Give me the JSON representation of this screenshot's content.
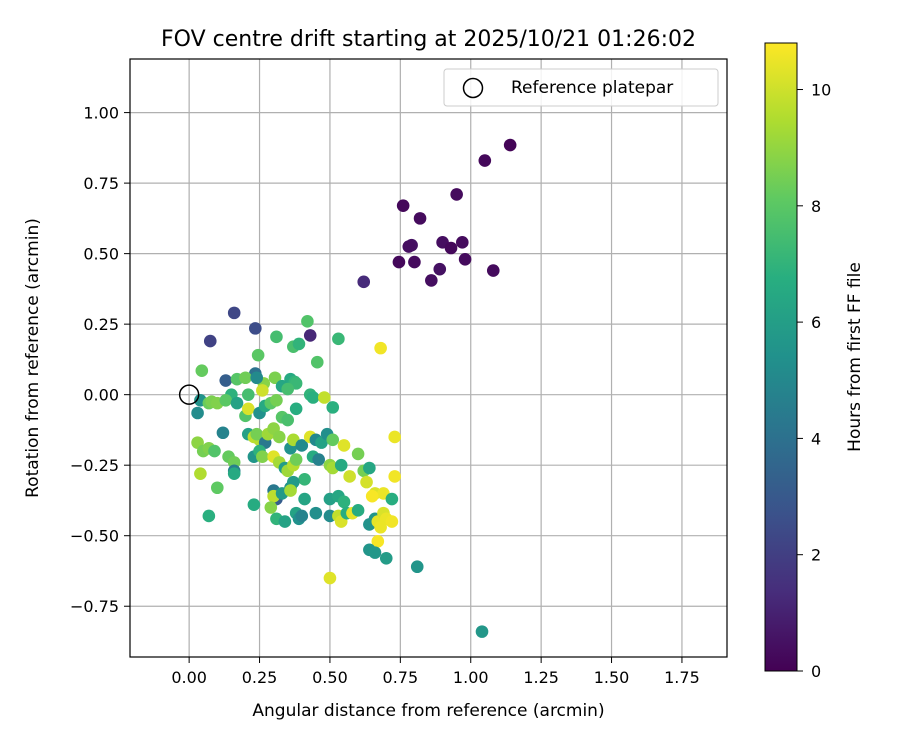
{
  "chart_data": {
    "type": "scatter",
    "title": "FOV centre drift starting at 2025/10/21 01:26:02",
    "xlabel": "Angular distance from reference (arcmin)",
    "ylabel": "Rotation from reference (arcmin)",
    "xlim": [
      -0.21,
      1.91
    ],
    "ylim": [
      -0.93,
      1.19
    ],
    "xticks": [
      0.0,
      0.25,
      0.5,
      0.75,
      1.0,
      1.25,
      1.5,
      1.75
    ],
    "xtick_labels": [
      "0.00",
      "0.25",
      "0.50",
      "0.75",
      "1.00",
      "1.25",
      "1.50",
      "1.75"
    ],
    "yticks": [
      -0.75,
      -0.5,
      -0.25,
      0.0,
      0.25,
      0.5,
      0.75,
      1.0
    ],
    "ytick_labels": [
      "−0.75",
      "−0.50",
      "−0.25",
      "0.00",
      "0.25",
      "0.50",
      "0.75",
      "1.00"
    ],
    "grid": true,
    "legend": {
      "position": "top-right",
      "entries": [
        "Reference platepar"
      ]
    },
    "reference_point": {
      "x": 0.0,
      "y": 0.0,
      "label": "Reference platepar"
    },
    "colorbar": {
      "label": "Hours from first FF file",
      "min": 0,
      "max": 10.8,
      "ticks": [
        0,
        2,
        4,
        6,
        8,
        10
      ],
      "tick_labels": [
        "0",
        "2",
        "4",
        "6",
        "8",
        "10"
      ],
      "colormap": "viridis"
    },
    "points": [
      {
        "x": 1.14,
        "y": 0.885,
        "h": 0.1
      },
      {
        "x": 1.05,
        "y": 0.83,
        "h": 0.2
      },
      {
        "x": 0.95,
        "y": 0.71,
        "h": 0.3
      },
      {
        "x": 0.76,
        "y": 0.67,
        "h": 0.2
      },
      {
        "x": 0.82,
        "y": 0.625,
        "h": 0.3
      },
      {
        "x": 0.97,
        "y": 0.54,
        "h": 0.3
      },
      {
        "x": 0.9,
        "y": 0.54,
        "h": 0.4
      },
      {
        "x": 0.79,
        "y": 0.53,
        "h": 0.5
      },
      {
        "x": 0.78,
        "y": 0.525,
        "h": 0.4
      },
      {
        "x": 0.93,
        "y": 0.52,
        "h": 0.2
      },
      {
        "x": 0.98,
        "y": 0.48,
        "h": 0.3
      },
      {
        "x": 0.745,
        "y": 0.47,
        "h": 0.2
      },
      {
        "x": 0.8,
        "y": 0.47,
        "h": 0.3
      },
      {
        "x": 0.89,
        "y": 0.445,
        "h": 0.5
      },
      {
        "x": 1.08,
        "y": 0.44,
        "h": 0.3
      },
      {
        "x": 0.86,
        "y": 0.405,
        "h": 0.4
      },
      {
        "x": 0.62,
        "y": 0.4,
        "h": 1.3
      },
      {
        "x": 0.16,
        "y": 0.29,
        "h": 2.3
      },
      {
        "x": 0.235,
        "y": 0.235,
        "h": 2.5
      },
      {
        "x": 0.43,
        "y": 0.21,
        "h": 1.2
      },
      {
        "x": 0.075,
        "y": 0.19,
        "h": 2.1
      },
      {
        "x": 0.42,
        "y": 0.26,
        "h": 7.8
      },
      {
        "x": 0.31,
        "y": 0.205,
        "h": 7.5
      },
      {
        "x": 0.53,
        "y": 0.198,
        "h": 7.2
      },
      {
        "x": 0.37,
        "y": 0.17,
        "h": 7.6
      },
      {
        "x": 0.39,
        "y": 0.18,
        "h": 7.0
      },
      {
        "x": 0.245,
        "y": 0.14,
        "h": 8.0
      },
      {
        "x": 0.68,
        "y": 0.165,
        "h": 10.6
      },
      {
        "x": 0.455,
        "y": 0.115,
        "h": 7.8
      },
      {
        "x": 0.045,
        "y": 0.085,
        "h": 8.2
      },
      {
        "x": 0.235,
        "y": 0.075,
        "h": 4.0
      },
      {
        "x": 0.13,
        "y": 0.05,
        "h": 3.2
      },
      {
        "x": 0.17,
        "y": 0.055,
        "h": 7.9
      },
      {
        "x": 0.2,
        "y": 0.06,
        "h": 8.4
      },
      {
        "x": 0.36,
        "y": 0.055,
        "h": 6.5
      },
      {
        "x": 0.375,
        "y": 0.045,
        "h": 7.0
      },
      {
        "x": 0.38,
        "y": 0.04,
        "h": 7.2
      },
      {
        "x": 0.305,
        "y": 0.06,
        "h": 8.6
      },
      {
        "x": 0.265,
        "y": 0.04,
        "h": 8.8
      },
      {
        "x": 0.24,
        "y": 0.06,
        "h": 5.1
      },
      {
        "x": 0.33,
        "y": 0.03,
        "h": 6.4
      },
      {
        "x": 0.35,
        "y": 0.02,
        "h": 7.5
      },
      {
        "x": 0.26,
        "y": 0.015,
        "h": 10.0
      },
      {
        "x": 0.15,
        "y": 0.0,
        "h": 6.9
      },
      {
        "x": 0.21,
        "y": 0.0,
        "h": 7.5
      },
      {
        "x": 0.43,
        "y": 0.0,
        "h": 7.0
      },
      {
        "x": 0.44,
        "y": -0.01,
        "h": 6.8
      },
      {
        "x": 0.48,
        "y": -0.01,
        "h": 9.8
      },
      {
        "x": 0.03,
        "y": -0.065,
        "h": 5.2
      },
      {
        "x": 0.04,
        "y": -0.02,
        "h": 5.5
      },
      {
        "x": 0.07,
        "y": -0.03,
        "h": 8.3
      },
      {
        "x": 0.08,
        "y": -0.025,
        "h": 8.6
      },
      {
        "x": 0.1,
        "y": -0.03,
        "h": 8.7
      },
      {
        "x": 0.13,
        "y": -0.02,
        "h": 8.0
      },
      {
        "x": 0.17,
        "y": -0.03,
        "h": 6.2
      },
      {
        "x": 0.2,
        "y": -0.075,
        "h": 7.8
      },
      {
        "x": 0.21,
        "y": -0.05,
        "h": 10.2
      },
      {
        "x": 0.25,
        "y": -0.065,
        "h": 5.4
      },
      {
        "x": 0.27,
        "y": -0.04,
        "h": 6.5
      },
      {
        "x": 0.29,
        "y": -0.03,
        "h": 8.0
      },
      {
        "x": 0.31,
        "y": -0.02,
        "h": 8.5
      },
      {
        "x": 0.33,
        "y": -0.08,
        "h": 7.9
      },
      {
        "x": 0.35,
        "y": -0.09,
        "h": 7.6
      },
      {
        "x": 0.38,
        "y": -0.05,
        "h": 6.7
      },
      {
        "x": 0.51,
        "y": -0.045,
        "h": 6.8
      },
      {
        "x": 0.12,
        "y": -0.135,
        "h": 4.8
      },
      {
        "x": 0.21,
        "y": -0.14,
        "h": 6.1
      },
      {
        "x": 0.23,
        "y": -0.15,
        "h": 9.7
      },
      {
        "x": 0.25,
        "y": -0.16,
        "h": 9.6
      },
      {
        "x": 0.24,
        "y": -0.14,
        "h": 8.5
      },
      {
        "x": 0.27,
        "y": -0.17,
        "h": 4.3
      },
      {
        "x": 0.28,
        "y": -0.14,
        "h": 9.2
      },
      {
        "x": 0.3,
        "y": -0.12,
        "h": 8.9
      },
      {
        "x": 0.32,
        "y": -0.15,
        "h": 8.8
      },
      {
        "x": 0.36,
        "y": -0.19,
        "h": 5.5
      },
      {
        "x": 0.37,
        "y": -0.16,
        "h": 9.4
      },
      {
        "x": 0.4,
        "y": -0.18,
        "h": 5.1
      },
      {
        "x": 0.43,
        "y": -0.15,
        "h": 10.3
      },
      {
        "x": 0.45,
        "y": -0.16,
        "h": 5.0
      },
      {
        "x": 0.47,
        "y": -0.17,
        "h": 6.2
      },
      {
        "x": 0.49,
        "y": -0.14,
        "h": 5.3
      },
      {
        "x": 0.51,
        "y": -0.16,
        "h": 8.2
      },
      {
        "x": 0.55,
        "y": -0.18,
        "h": 10.3
      },
      {
        "x": 0.6,
        "y": -0.21,
        "h": 8.5
      },
      {
        "x": 0.73,
        "y": -0.15,
        "h": 10.5
      },
      {
        "x": 0.03,
        "y": -0.17,
        "h": 8.9
      },
      {
        "x": 0.05,
        "y": -0.2,
        "h": 8.5
      },
      {
        "x": 0.07,
        "y": -0.19,
        "h": 8.7
      },
      {
        "x": 0.09,
        "y": -0.2,
        "h": 7.8
      },
      {
        "x": 0.14,
        "y": -0.22,
        "h": 8.2
      },
      {
        "x": 0.16,
        "y": -0.24,
        "h": 8.4
      },
      {
        "x": 0.16,
        "y": -0.27,
        "h": 4.6
      },
      {
        "x": 0.16,
        "y": -0.28,
        "h": 6.5
      },
      {
        "x": 0.23,
        "y": -0.22,
        "h": 5.6
      },
      {
        "x": 0.25,
        "y": -0.2,
        "h": 6.9
      },
      {
        "x": 0.26,
        "y": -0.22,
        "h": 8.7
      },
      {
        "x": 0.3,
        "y": -0.22,
        "h": 10.3
      },
      {
        "x": 0.32,
        "y": -0.24,
        "h": 9.3
      },
      {
        "x": 0.34,
        "y": -0.26,
        "h": 5.9
      },
      {
        "x": 0.35,
        "y": -0.27,
        "h": 9.2
      },
      {
        "x": 0.37,
        "y": -0.25,
        "h": 9.6
      },
      {
        "x": 0.38,
        "y": -0.23,
        "h": 8.4
      },
      {
        "x": 0.41,
        "y": -0.3,
        "h": 7.1
      },
      {
        "x": 0.44,
        "y": -0.22,
        "h": 6.6
      },
      {
        "x": 0.46,
        "y": -0.23,
        "h": 4.7
      },
      {
        "x": 0.5,
        "y": -0.25,
        "h": 8.9
      },
      {
        "x": 0.51,
        "y": -0.26,
        "h": 9.3
      },
      {
        "x": 0.54,
        "y": -0.25,
        "h": 6.5
      },
      {
        "x": 0.57,
        "y": -0.29,
        "h": 10.0
      },
      {
        "x": 0.62,
        "y": -0.27,
        "h": 8.5
      },
      {
        "x": 0.64,
        "y": -0.26,
        "h": 6.4
      },
      {
        "x": 0.63,
        "y": -0.31,
        "h": 10.1
      },
      {
        "x": 0.66,
        "y": -0.35,
        "h": 10.2
      },
      {
        "x": 0.69,
        "y": -0.35,
        "h": 10.5
      },
      {
        "x": 0.73,
        "y": -0.29,
        "h": 10.6
      },
      {
        "x": 0.04,
        "y": -0.28,
        "h": 9.5
      },
      {
        "x": 0.1,
        "y": -0.33,
        "h": 8.1
      },
      {
        "x": 0.3,
        "y": -0.34,
        "h": 4.3
      },
      {
        "x": 0.31,
        "y": -0.37,
        "h": 3.2
      },
      {
        "x": 0.3,
        "y": -0.36,
        "h": 9.7
      },
      {
        "x": 0.33,
        "y": -0.35,
        "h": 5.8
      },
      {
        "x": 0.36,
        "y": -0.33,
        "h": 5.4
      },
      {
        "x": 0.37,
        "y": -0.31,
        "h": 5.8
      },
      {
        "x": 0.36,
        "y": -0.34,
        "h": 9.3
      },
      {
        "x": 0.41,
        "y": -0.37,
        "h": 6.3
      },
      {
        "x": 0.5,
        "y": -0.37,
        "h": 6.1
      },
      {
        "x": 0.53,
        "y": -0.36,
        "h": 6.4
      },
      {
        "x": 0.55,
        "y": -0.38,
        "h": 6.9
      },
      {
        "x": 0.65,
        "y": -0.36,
        "h": 10.7
      },
      {
        "x": 0.72,
        "y": -0.37,
        "h": 6.7
      },
      {
        "x": 0.07,
        "y": -0.43,
        "h": 6.8
      },
      {
        "x": 0.23,
        "y": -0.39,
        "h": 6.6
      },
      {
        "x": 0.29,
        "y": -0.4,
        "h": 8.8
      },
      {
        "x": 0.31,
        "y": -0.44,
        "h": 7.0
      },
      {
        "x": 0.34,
        "y": -0.45,
        "h": 6.2
      },
      {
        "x": 0.38,
        "y": -0.42,
        "h": 6.2
      },
      {
        "x": 0.39,
        "y": -0.44,
        "h": 5.4
      },
      {
        "x": 0.4,
        "y": -0.43,
        "h": 4.8
      },
      {
        "x": 0.45,
        "y": -0.42,
        "h": 5.3
      },
      {
        "x": 0.5,
        "y": -0.43,
        "h": 5.2
      },
      {
        "x": 0.53,
        "y": -0.43,
        "h": 9.8
      },
      {
        "x": 0.54,
        "y": -0.45,
        "h": 10.2
      },
      {
        "x": 0.56,
        "y": -0.42,
        "h": 6.7
      },
      {
        "x": 0.58,
        "y": -0.42,
        "h": 10.4
      },
      {
        "x": 0.6,
        "y": -0.41,
        "h": 6.6
      },
      {
        "x": 0.64,
        "y": -0.46,
        "h": 5.5
      },
      {
        "x": 0.66,
        "y": -0.44,
        "h": 5.6
      },
      {
        "x": 0.67,
        "y": -0.45,
        "h": 10.4
      },
      {
        "x": 0.69,
        "y": -0.42,
        "h": 10.2
      },
      {
        "x": 0.7,
        "y": -0.44,
        "h": 10.5
      },
      {
        "x": 0.72,
        "y": -0.45,
        "h": 10.6
      },
      {
        "x": 0.68,
        "y": -0.47,
        "h": 10.5
      },
      {
        "x": 0.67,
        "y": -0.52,
        "h": 10.7
      },
      {
        "x": 0.64,
        "y": -0.55,
        "h": 5.6
      },
      {
        "x": 0.66,
        "y": -0.56,
        "h": 5.7
      },
      {
        "x": 0.7,
        "y": -0.58,
        "h": 5.9
      },
      {
        "x": 0.81,
        "y": -0.61,
        "h": 5.6
      },
      {
        "x": 0.5,
        "y": -0.65,
        "h": 10.3
      },
      {
        "x": 1.04,
        "y": -0.84,
        "h": 5.7
      }
    ]
  }
}
